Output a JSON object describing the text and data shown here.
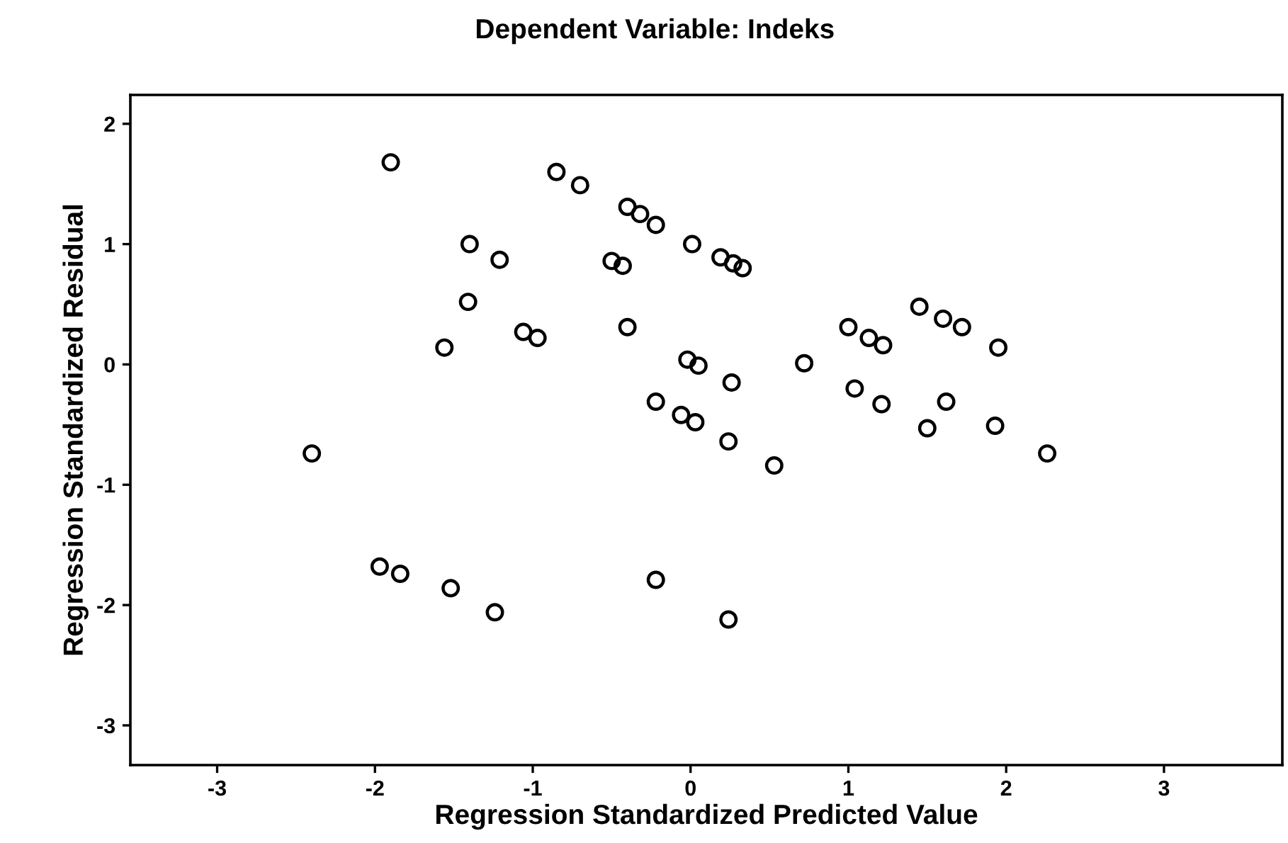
{
  "chart_data": {
    "type": "scatter",
    "title": "Dependent Variable: Indeks",
    "xlabel": "Regression Standardized Predicted Value",
    "ylabel": "Regression Standardized Residual",
    "x": [
      -2.4,
      -1.9,
      -1.4,
      -1.41,
      -1.56,
      -1.21,
      -1.06,
      -0.97,
      -0.85,
      -0.7,
      -0.4,
      -0.32,
      -0.22,
      -0.5,
      -0.43,
      -0.4,
      0.01,
      0.19,
      0.27,
      0.33,
      -0.02,
      0.05,
      0.26,
      -0.22,
      -0.06,
      0.03,
      0.24,
      0.53,
      0.72,
      1.0,
      1.13,
      1.22,
      1.04,
      1.21,
      1.45,
      1.6,
      1.72,
      1.95,
      1.62,
      1.5,
      1.93,
      2.26,
      -1.97,
      -1.84,
      -1.52,
      -1.24,
      -0.22,
      0.24
    ],
    "values": [
      -0.74,
      1.68,
      1.0,
      0.52,
      0.14,
      0.87,
      0.27,
      0.22,
      1.6,
      1.49,
      1.31,
      1.25,
      1.16,
      0.86,
      0.82,
      0.31,
      1.0,
      0.89,
      0.84,
      0.8,
      0.04,
      -0.01,
      -0.15,
      -0.31,
      -0.42,
      -0.48,
      -0.64,
      -0.84,
      0.01,
      0.31,
      0.22,
      0.16,
      -0.2,
      -0.33,
      0.48,
      0.38,
      0.31,
      0.14,
      -0.31,
      -0.53,
      -0.51,
      -0.74,
      -1.68,
      -1.74,
      -1.86,
      -2.06,
      -1.79,
      -2.12
    ],
    "color": "#000000",
    "marker": "circle",
    "xlim": [
      -3.55,
      3.75
    ],
    "ylim": [
      -3.33,
      2.24
    ],
    "xticks": [
      -3,
      -2,
      -1,
      0,
      1,
      2,
      3
    ],
    "yticks": [
      -3,
      -2,
      -1,
      0,
      1,
      2
    ],
    "grid": false,
    "legend": false
  }
}
